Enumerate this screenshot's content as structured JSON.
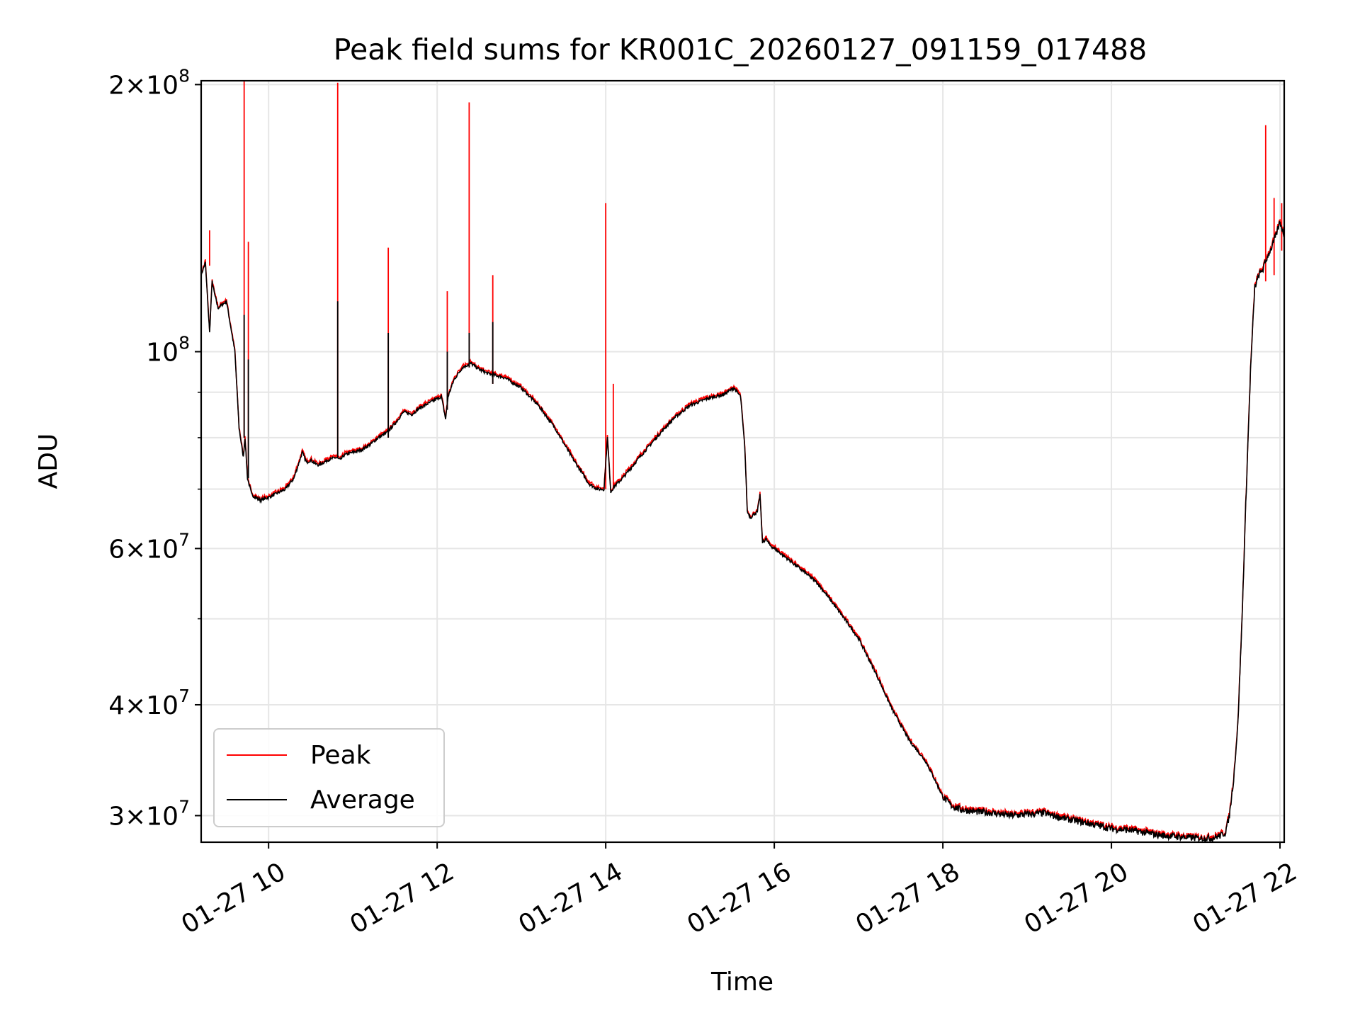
{
  "chart_data": {
    "type": "line",
    "title": "Peak field sums for KR001C_20260127_091159_017488",
    "xlabel": "Time",
    "ylabel": "ADU",
    "xunit": "hours on 01-27",
    "xlim": [
      9.2,
      22.05
    ],
    "ylim": [
      28000000,
      202000000
    ],
    "yscale": "log",
    "grid": true,
    "legend": "lower left",
    "xticks": [
      {
        "value": 10,
        "label": "01-27 10"
      },
      {
        "value": 12,
        "label": "01-27 12"
      },
      {
        "value": 14,
        "label": "01-27 14"
      },
      {
        "value": 16,
        "label": "01-27 16"
      },
      {
        "value": 18,
        "label": "01-27 18"
      },
      {
        "value": 20,
        "label": "01-27 20"
      },
      {
        "value": 22,
        "label": "01-27 22"
      }
    ],
    "yticks": [
      {
        "value": 30000000,
        "base": "3",
        "exp": "7"
      },
      {
        "value": 40000000,
        "base": "4",
        "exp": "7"
      },
      {
        "value": 60000000,
        "base": "6",
        "exp": "7"
      },
      {
        "value": 100000000,
        "base": "",
        "exp": "8"
      },
      {
        "value": 200000000,
        "base": "2",
        "exp": "8"
      }
    ],
    "yminor": [
      50000000,
      70000000,
      80000000,
      90000000
    ],
    "series": [
      {
        "name": "Peak",
        "color": "#ff0000",
        "spikes": [
          {
            "x": 9.3,
            "base": 125000000,
            "top": 137000000
          },
          {
            "x": 9.71,
            "base": 80000000,
            "top": 202000000
          },
          {
            "x": 9.76,
            "base": 72000000,
            "top": 133000000
          },
          {
            "x": 10.82,
            "base": 76000000,
            "top": 201000000
          },
          {
            "x": 11.42,
            "base": 80000000,
            "top": 131000000
          },
          {
            "x": 12.12,
            "base": 86000000,
            "top": 117000000
          },
          {
            "x": 12.38,
            "base": 96000000,
            "top": 191000000
          },
          {
            "x": 12.66,
            "base": 92000000,
            "top": 122000000
          },
          {
            "x": 14.0,
            "base": 70000000,
            "top": 147000000
          },
          {
            "x": 14.09,
            "base": 70000000,
            "top": 92000000
          },
          {
            "x": 21.83,
            "base": 120000000,
            "top": 180000000
          },
          {
            "x": 21.93,
            "base": 122000000,
            "top": 149000000
          },
          {
            "x": 22.02,
            "base": 130000000,
            "top": 147000000
          }
        ]
      },
      {
        "name": "Average",
        "color": "#000000",
        "x": [
          9.2,
          9.25,
          9.3,
          9.33,
          9.36,
          9.4,
          9.5,
          9.6,
          9.65,
          9.7,
          9.72,
          9.75,
          9.8,
          9.9,
          10.0,
          10.2,
          10.3,
          10.4,
          10.45,
          10.5,
          10.55,
          10.6,
          10.7,
          10.8,
          10.85,
          10.9,
          11.0,
          11.1,
          11.2,
          11.3,
          11.4,
          11.5,
          11.6,
          11.7,
          11.8,
          11.9,
          12.0,
          12.05,
          12.1,
          12.13,
          12.2,
          12.3,
          12.4,
          12.5,
          12.6,
          12.7,
          12.8,
          13.0,
          13.2,
          13.4,
          13.6,
          13.8,
          13.9,
          13.98,
          14.02,
          14.06,
          14.1,
          14.2,
          14.4,
          14.6,
          14.8,
          15.0,
          15.2,
          15.4,
          15.52,
          15.6,
          15.65,
          15.68,
          15.72,
          15.75,
          15.8,
          15.83,
          15.86,
          15.9,
          15.95,
          16.0,
          16.2,
          16.4,
          16.5,
          16.6,
          16.8,
          17.0,
          17.2,
          17.4,
          17.6,
          17.8,
          17.9,
          18.0,
          18.1,
          18.2,
          18.4,
          18.6,
          18.8,
          19.0,
          19.2,
          19.3,
          19.5,
          19.8,
          20.0,
          20.2,
          20.4,
          20.6,
          20.8,
          21.0,
          21.2,
          21.3,
          21.35,
          21.4,
          21.45,
          21.5,
          21.55,
          21.6,
          21.65,
          21.7,
          21.75,
          21.8,
          21.85,
          21.9,
          21.95,
          22.0,
          22.05
        ],
        "values": [
          122000000,
          126000000,
          105000000,
          120000000,
          116000000,
          112000000,
          114000000,
          100000000,
          82000000,
          76000000,
          80000000,
          72000000,
          69000000,
          68000000,
          68500000,
          70000000,
          72000000,
          77000000,
          75000000,
          75500000,
          74800000,
          74500000,
          75500000,
          76000000,
          75500000,
          76500000,
          77000000,
          77500000,
          78500000,
          80000000,
          81000000,
          83000000,
          85500000,
          85000000,
          86500000,
          87500000,
          88500000,
          89000000,
          84000000,
          89000000,
          93000000,
          96000000,
          97000000,
          95500000,
          94500000,
          94000000,
          93500000,
          91000000,
          87000000,
          82000000,
          76000000,
          71000000,
          70000000,
          70000000,
          80000000,
          69500000,
          70500000,
          72000000,
          76000000,
          80000000,
          84000000,
          87000000,
          88500000,
          89500000,
          91000000,
          89000000,
          78000000,
          66000000,
          65000000,
          65500000,
          66000000,
          69000000,
          61000000,
          61500000,
          60500000,
          60000000,
          58000000,
          56000000,
          55000000,
          53500000,
          50500000,
          47500000,
          43500000,
          39500000,
          36500000,
          34500000,
          33000000,
          31500000,
          30800000,
          30500000,
          30300000,
          30200000,
          30000000,
          30100000,
          30200000,
          30000000,
          29700000,
          29300000,
          29000000,
          28900000,
          28700000,
          28500000,
          28400000,
          28300000,
          28300000,
          28500000,
          28700000,
          30000000,
          33000000,
          38000000,
          50000000,
          70000000,
          95000000,
          118000000,
          122000000,
          124000000,
          128000000,
          131000000,
          135000000,
          140000000,
          135000000
        ],
        "spikes": [
          {
            "x": 9.71,
            "base": 80000000,
            "top": 110000000
          },
          {
            "x": 9.76,
            "base": 72000000,
            "top": 98000000
          },
          {
            "x": 10.82,
            "base": 76000000,
            "top": 114000000
          },
          {
            "x": 11.42,
            "base": 80000000,
            "top": 105000000
          },
          {
            "x": 12.12,
            "base": 86000000,
            "top": 100000000
          },
          {
            "x": 12.38,
            "base": 96000000,
            "top": 105000000
          },
          {
            "x": 12.66,
            "base": 92000000,
            "top": 108000000
          }
        ]
      }
    ]
  }
}
